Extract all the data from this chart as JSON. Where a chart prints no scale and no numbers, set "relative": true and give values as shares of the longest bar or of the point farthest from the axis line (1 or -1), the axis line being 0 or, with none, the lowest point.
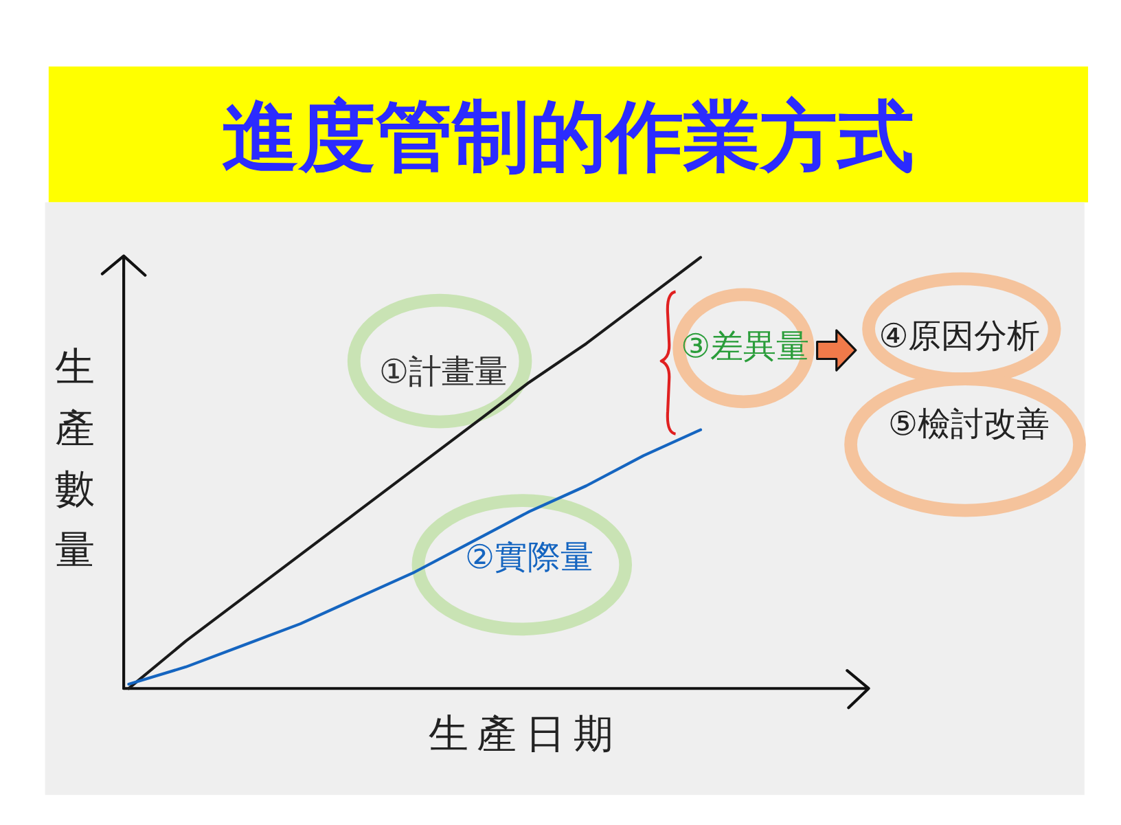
{
  "chart_data": {
    "type": "line",
    "title": "進度管制的作業方式",
    "xlabel": "生產日期",
    "ylabel": "生產數量",
    "relative": true,
    "categories": [
      null,
      null,
      null,
      null,
      null,
      null,
      null,
      null,
      null,
      null,
      null,
      null,
      null,
      null
    ],
    "series": [
      {
        "color": "#1a1a1a",
        "values": [
          0,
          0.11,
          0.21,
          0.31,
          0.41,
          0.51,
          0.61,
          0.71,
          0.8,
          0.9,
          1,
          null,
          null,
          null
        ]
      },
      {
        "color": "#1565c0",
        "values": [
          0.01,
          0.05,
          0.1,
          0.15,
          0.21,
          0.27,
          0.34,
          0.41,
          0.47,
          0.54,
          0.6,
          null,
          null,
          null
        ]
      }
    ],
    "annotations": [
      "①計畫量",
      "②實際量",
      "③差異量",
      "④原因分析",
      "⑤檢討改善"
    ]
  }
}
